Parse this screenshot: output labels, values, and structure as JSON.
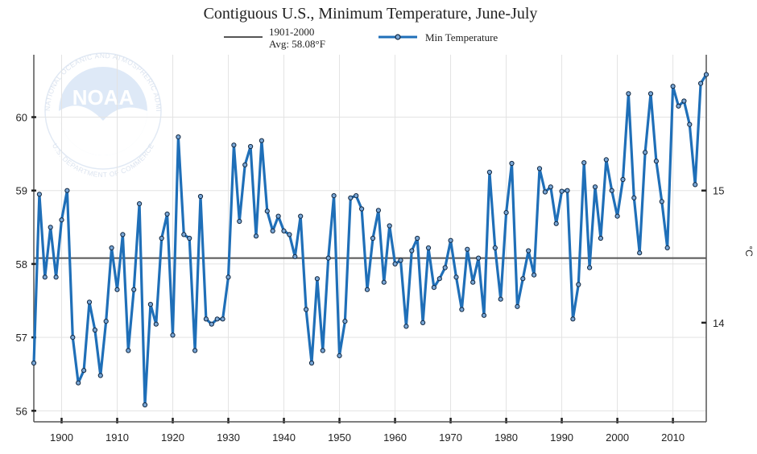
{
  "chart_data": {
    "type": "line",
    "title": "Contiguous U.S., Minimum Temperature, June-July",
    "legend": [
      {
        "label_line1": "1901-2000",
        "label_line2": "Avg: 58.08°F",
        "color": "#555555",
        "kind": "reference-line"
      },
      {
        "label": "Min Temperature",
        "color": "#1f6fb8",
        "kind": "series"
      }
    ],
    "reference_value": 58.08,
    "ylim_f": [
      55.85,
      60.85
    ],
    "xlim": [
      1895,
      2016
    ],
    "y_ticks_f": [
      56,
      57,
      58,
      59,
      60
    ],
    "y_ticks_c": [
      14,
      15
    ],
    "y_unit_right": "°C",
    "x_ticks": [
      1900,
      1910,
      1920,
      1930,
      1940,
      1950,
      1960,
      1970,
      1980,
      1990,
      2000,
      2010
    ],
    "series": [
      {
        "name": "Min Temperature",
        "color": "#1f6fb8",
        "x": [
          1895,
          1896,
          1897,
          1898,
          1899,
          1900,
          1901,
          1902,
          1903,
          1904,
          1905,
          1906,
          1907,
          1908,
          1909,
          1910,
          1911,
          1912,
          1913,
          1914,
          1915,
          1916,
          1917,
          1918,
          1919,
          1920,
          1921,
          1922,
          1923,
          1924,
          1925,
          1926,
          1927,
          1928,
          1929,
          1930,
          1931,
          1932,
          1933,
          1934,
          1935,
          1936,
          1937,
          1938,
          1939,
          1940,
          1941,
          1942,
          1943,
          1944,
          1945,
          1946,
          1947,
          1948,
          1949,
          1950,
          1951,
          1952,
          1953,
          1954,
          1955,
          1956,
          1957,
          1958,
          1959,
          1960,
          1961,
          1962,
          1963,
          1964,
          1965,
          1966,
          1967,
          1968,
          1969,
          1970,
          1971,
          1972,
          1973,
          1974,
          1975,
          1976,
          1977,
          1978,
          1979,
          1980,
          1981,
          1982,
          1983,
          1984,
          1985,
          1986,
          1987,
          1988,
          1989,
          1990,
          1991,
          1992,
          1993,
          1994,
          1995,
          1996,
          1997,
          1998,
          1999,
          2000,
          2001,
          2002,
          2003,
          2004,
          2005,
          2006,
          2007,
          2008,
          2009,
          2010,
          2011,
          2012,
          2013,
          2014,
          2015,
          2016
        ],
        "values": [
          56.65,
          58.95,
          57.82,
          58.5,
          57.82,
          58.6,
          59.0,
          57.0,
          56.38,
          56.55,
          57.48,
          57.1,
          56.48,
          57.22,
          58.22,
          57.65,
          58.4,
          56.82,
          57.65,
          58.82,
          56.08,
          57.45,
          57.18,
          58.35,
          58.68,
          57.03,
          59.73,
          58.4,
          58.35,
          56.82,
          58.92,
          57.25,
          57.18,
          57.25,
          57.25,
          57.82,
          59.62,
          58.58,
          59.35,
          59.6,
          58.38,
          59.68,
          58.72,
          58.45,
          58.65,
          58.45,
          58.4,
          58.1,
          58.65,
          57.38,
          56.65,
          57.8,
          56.82,
          58.08,
          58.93,
          56.75,
          57.22,
          58.9,
          58.93,
          58.75,
          57.65,
          58.35,
          58.73,
          57.75,
          58.52,
          58.0,
          58.05,
          57.15,
          58.18,
          58.35,
          57.2,
          58.22,
          57.68,
          57.8,
          57.95,
          58.32,
          57.82,
          57.38,
          58.2,
          57.75,
          58.08,
          57.3,
          59.25,
          58.22,
          57.52,
          58.7,
          59.37,
          57.42,
          57.8,
          58.18,
          57.85,
          59.3,
          58.98,
          59.05,
          58.55,
          58.99,
          59.0,
          57.25,
          57.72,
          59.38,
          57.95,
          59.05,
          58.35,
          59.42,
          59.0,
          58.65,
          59.15,
          60.32,
          58.9,
          58.15,
          59.52,
          60.32,
          59.4,
          58.85,
          58.22,
          60.42,
          60.15,
          60.22,
          59.9,
          59.08,
          60.46,
          60.58
        ]
      }
    ]
  },
  "watermark": {
    "emblem_text": "NOAA",
    "ring_text": "NATIONAL OCEANIC AND ATMOSPHERIC ADMINISTRATION",
    "bottom_text": "U.S. DEPARTMENT OF COMMERCE"
  }
}
